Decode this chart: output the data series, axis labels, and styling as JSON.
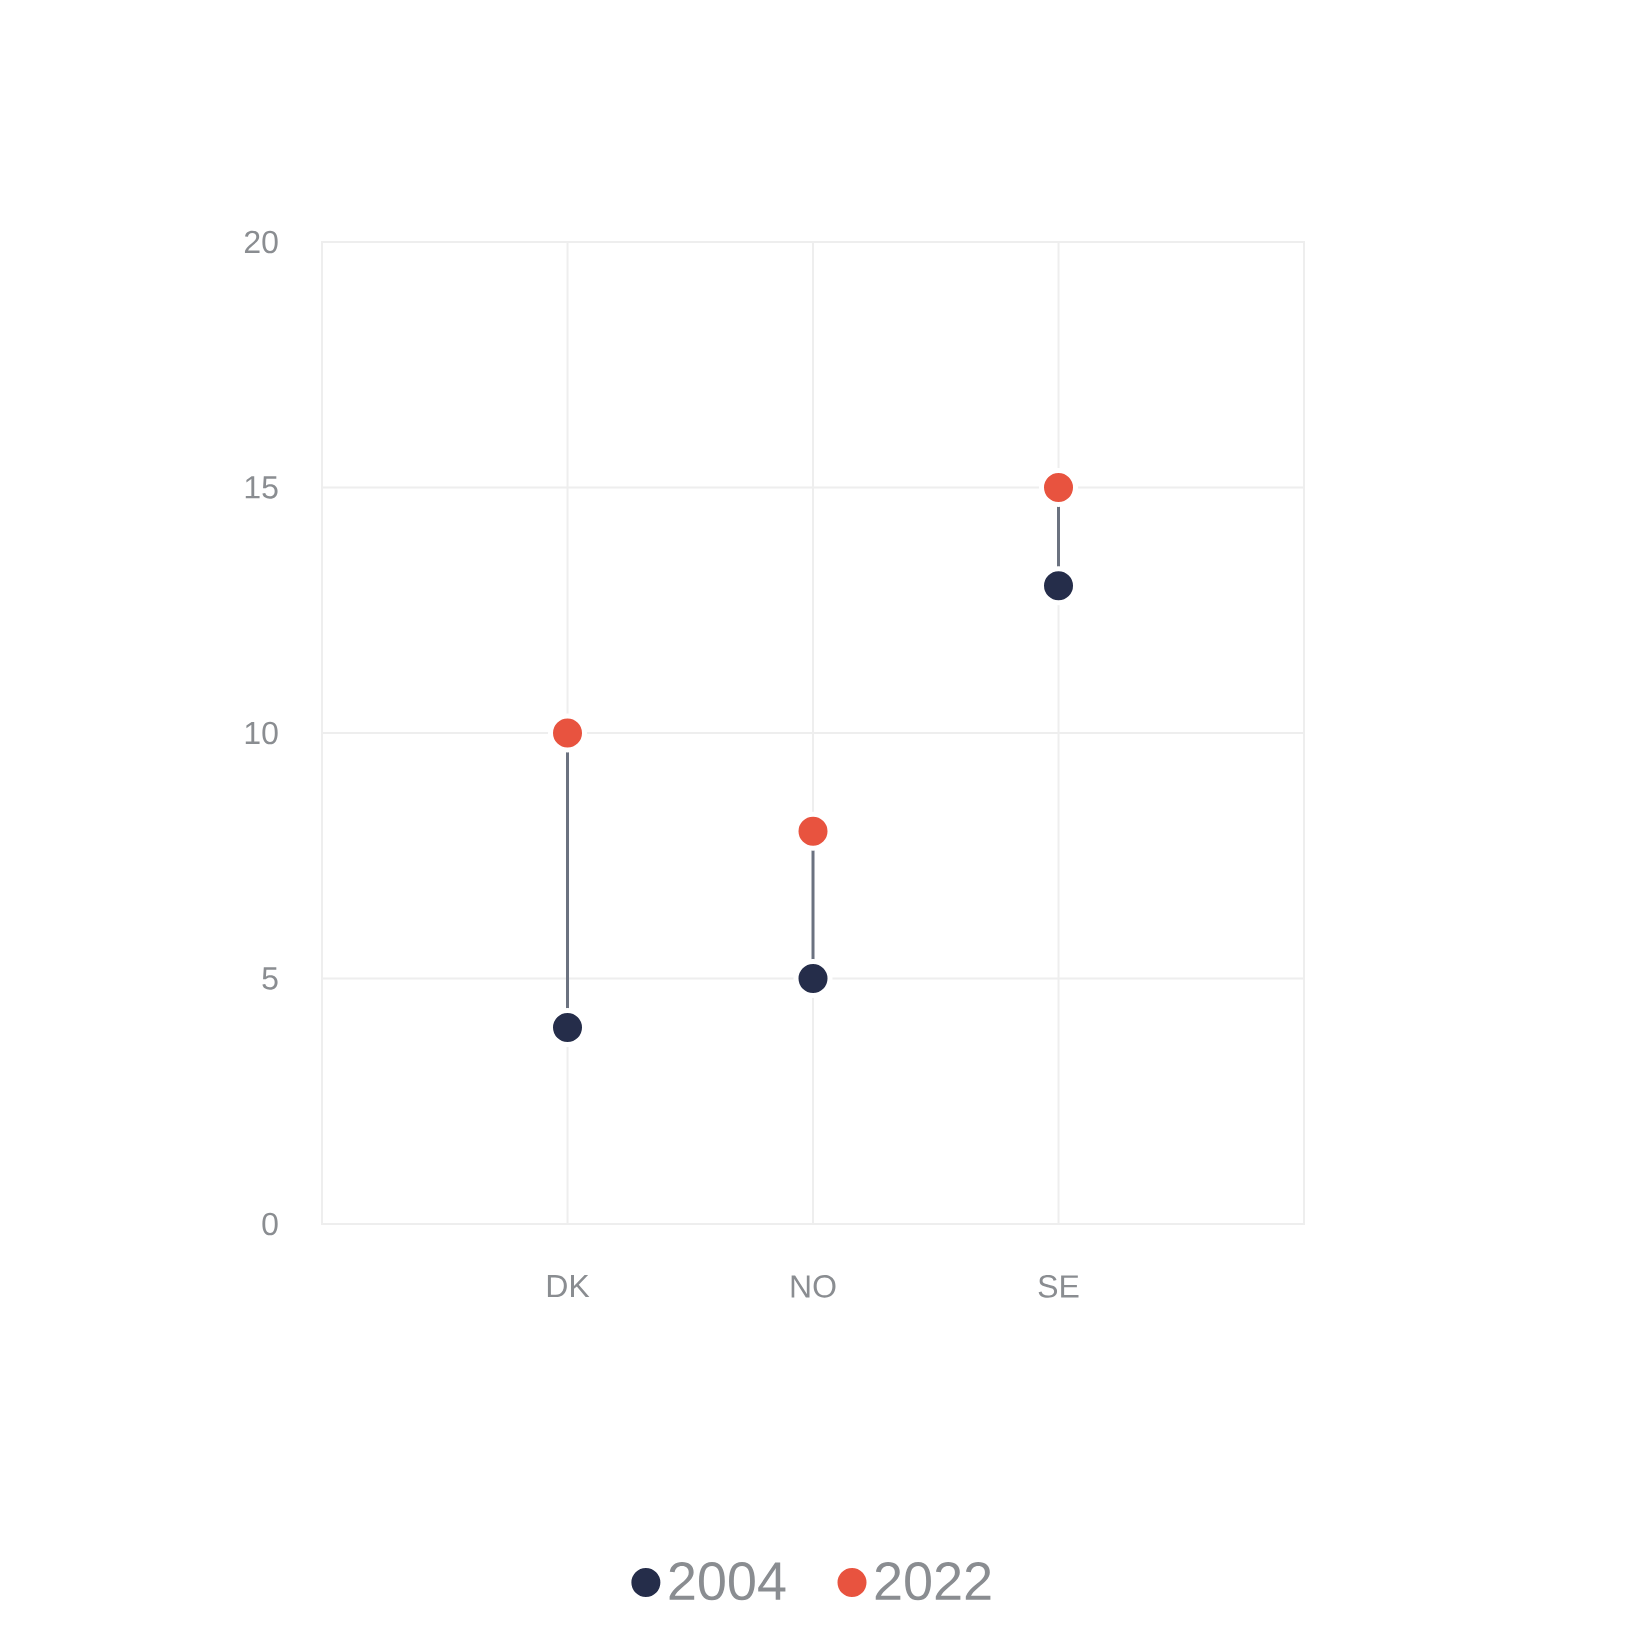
{
  "chart_data": {
    "type": "scatter",
    "categories": [
      "DK",
      "NO",
      "SE"
    ],
    "ylim": [
      0,
      20
    ],
    "yticks": [
      0,
      5,
      10,
      15,
      20
    ],
    "grid": true,
    "legend": "bottom",
    "marker": "circle",
    "series": [
      {
        "name": "2004",
        "type": "scatter",
        "color": "#252d4a",
        "values": [
          4,
          5,
          13
        ]
      },
      {
        "name": "2022",
        "type": "scatter",
        "color": "#e8533f",
        "values": [
          10,
          8,
          15
        ]
      }
    ]
  }
}
